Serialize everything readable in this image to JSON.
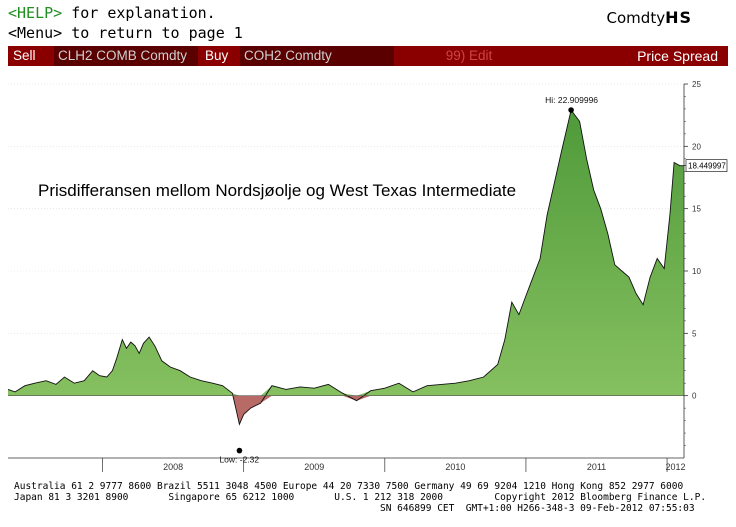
{
  "header": {
    "help_key": "<HELP>",
    "help_rest": " for explanation.",
    "menu_line": "<Menu> to return to page 1",
    "ticker_prefix": "Comdty",
    "ticker_code": "HS"
  },
  "toolbar": {
    "sell_label": "Sell",
    "sell_value": "CLH2 COMB Comdty",
    "buy_label": "Buy",
    "buy_value": "COH2 Comdty",
    "edit_label": "99) Edit",
    "title": "Price Spread"
  },
  "chart_data": {
    "type": "area",
    "title": "Prisdifferansen mellom Nordsjøolje og West Texas Intermediate",
    "y_ticks": [
      "25",
      "20",
      "15",
      "10",
      "5",
      "0"
    ],
    "year_labels": [
      "2008",
      "2009",
      "2010",
      "2011",
      "2012"
    ],
    "ylim": [
      -5,
      25
    ],
    "xlim": [
      2007.33,
      2012.12
    ],
    "grid": true,
    "high_label": "Hi: 22.909996",
    "high": {
      "x": 2011.32,
      "y": 22.91
    },
    "low_label": "Low: -2.32",
    "low": {
      "x": 2008.97,
      "y": -2.32
    },
    "last_label": "18.449997",
    "last_value": 18.45,
    "positive_color": "#7dbb55",
    "negative_color": "#b06060",
    "series": [
      {
        "x": [
          2007.33,
          2007.38,
          2007.45,
          2007.52,
          2007.6,
          2007.67,
          2007.73,
          2007.8,
          2007.87,
          2007.93,
          2007.98,
          2008.03,
          2008.07,
          2008.1,
          2008.14,
          2008.17,
          2008.2,
          2008.23,
          2008.26,
          2008.29,
          2008.33,
          2008.37,
          2008.42,
          2008.48,
          2008.55,
          2008.62,
          2008.7,
          2008.78,
          2008.85,
          2008.92,
          2008.97,
          2009.0,
          2009.05,
          2009.12,
          2009.2,
          2009.3,
          2009.4,
          2009.5,
          2009.6,
          2009.7,
          2009.8,
          2009.9,
          2010.0,
          2010.1,
          2010.2,
          2010.3,
          2010.4,
          2010.5,
          2010.6,
          2010.7,
          2010.8,
          2010.85,
          2010.9,
          2010.95,
          2011.0,
          2011.05,
          2011.1,
          2011.15,
          2011.2,
          2011.25,
          2011.32,
          2011.38,
          2011.43,
          2011.48,
          2011.53,
          2011.58,
          2011.63,
          2011.68,
          2011.73,
          2011.78,
          2011.83,
          2011.88,
          2011.93,
          2011.98,
          2012.02,
          2012.05,
          2012.09,
          2012.12
        ],
        "y": [
          0.5,
          0.3,
          0.8,
          1.0,
          1.2,
          0.9,
          1.5,
          1.0,
          1.2,
          2.0,
          1.6,
          1.5,
          2.0,
          3.0,
          4.5,
          3.8,
          4.3,
          4.0,
          3.4,
          4.2,
          4.7,
          4.0,
          2.8,
          2.3,
          2.0,
          1.5,
          1.2,
          1.0,
          0.8,
          0.2,
          -2.3,
          -1.5,
          -1.0,
          -0.6,
          0.8,
          0.5,
          0.7,
          0.6,
          0.9,
          0.2,
          -0.4,
          0.4,
          0.6,
          1.0,
          0.3,
          0.8,
          0.9,
          1.0,
          1.2,
          1.5,
          2.5,
          4.5,
          7.5,
          6.5,
          8.0,
          9.5,
          11.0,
          14.5,
          17.0,
          19.5,
          22.9,
          22.0,
          19.0,
          16.5,
          15.0,
          13.0,
          10.5,
          10.0,
          9.5,
          8.2,
          7.3,
          9.5,
          11.0,
          10.2,
          14.5,
          18.7,
          18.45,
          18.45
        ]
      }
    ]
  },
  "footer": {
    "line1": "Australia 61 2 9777 8600 Brazil 5511 3048 4500 Europe 44 20 7330 7500 Germany 49 69 9204 1210 Hong Kong 852 2977 6000",
    "line2": "Japan 81 3 3201 8900       Singapore 65 6212 1000       U.S. 1 212 318 2000         Copyright 2012 Bloomberg Finance L.P.",
    "line3": "SN 646899 CET  GMT+1:00 H266-348-3 09-Feb-2012 07:55:03"
  }
}
